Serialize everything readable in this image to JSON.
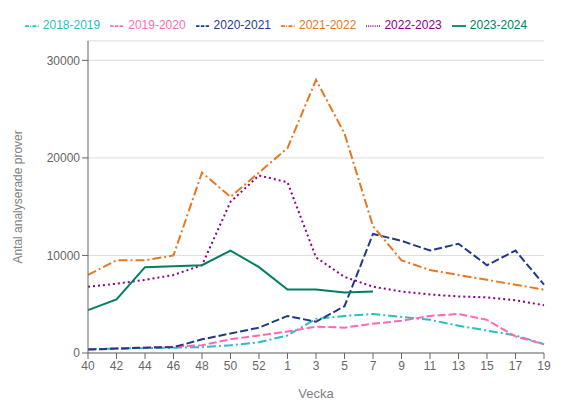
{
  "chart_data": {
    "type": "line",
    "xlabel": "Vecka",
    "ylabel": "Antal analyserade prover",
    "categories": [
      "40",
      "42",
      "44",
      "46",
      "48",
      "50",
      "52",
      "1",
      "3",
      "5",
      "7",
      "9",
      "11",
      "13",
      "15",
      "17",
      "19"
    ],
    "series": [
      {
        "name": "2018-2019",
        "color": "#2ABFBF",
        "line_style": "dashdot",
        "values": [
          400,
          450,
          500,
          550,
          600,
          800,
          1100,
          1800,
          3500,
          3800,
          4000,
          3700,
          3400,
          2800,
          2300,
          1800,
          900
        ]
      },
      {
        "name": "2019-2020",
        "color": "#FF69B4",
        "line_style": "dashed",
        "values": [
          350,
          450,
          550,
          650,
          800,
          1400,
          1800,
          2200,
          2700,
          2600,
          3000,
          3300,
          3800,
          4000,
          3400,
          1700,
          900
        ]
      },
      {
        "name": "2020-2021",
        "color": "#1F3A8A",
        "line_style": "dashed",
        "values": [
          350,
          450,
          550,
          600,
          1400,
          2000,
          2600,
          3800,
          3200,
          4800,
          12200,
          11500,
          10500,
          11200,
          9000,
          10500,
          7000
        ]
      },
      {
        "name": "2021-2022",
        "color": "#E87722",
        "line_style": "dashdot",
        "values": [
          8000,
          9500,
          9500,
          10000,
          18500,
          16000,
          18500,
          21000,
          28000,
          22500,
          13000,
          9500,
          8500,
          8000,
          7500,
          7000,
          6500
        ]
      },
      {
        "name": "2022-2023",
        "color": "#8B008B",
        "line_style": "dotted",
        "values": [
          6800,
          7100,
          7500,
          8000,
          9000,
          15500,
          18200,
          17500,
          9800,
          7800,
          6800,
          6300,
          6000,
          5800,
          5700,
          5400,
          4900
        ]
      },
      {
        "name": "2023-2024",
        "color": "#008060",
        "line_style": "solid",
        "values": [
          4400,
          5500,
          8800,
          8900,
          9000,
          10500,
          8800,
          6500,
          6500,
          6200,
          6300,
          null,
          null,
          null,
          null,
          null,
          null
        ]
      }
    ],
    "ylim": [
      0,
      32000
    ],
    "yticks": [
      0,
      10000,
      20000,
      30000
    ],
    "grid": true,
    "legend": "top"
  }
}
